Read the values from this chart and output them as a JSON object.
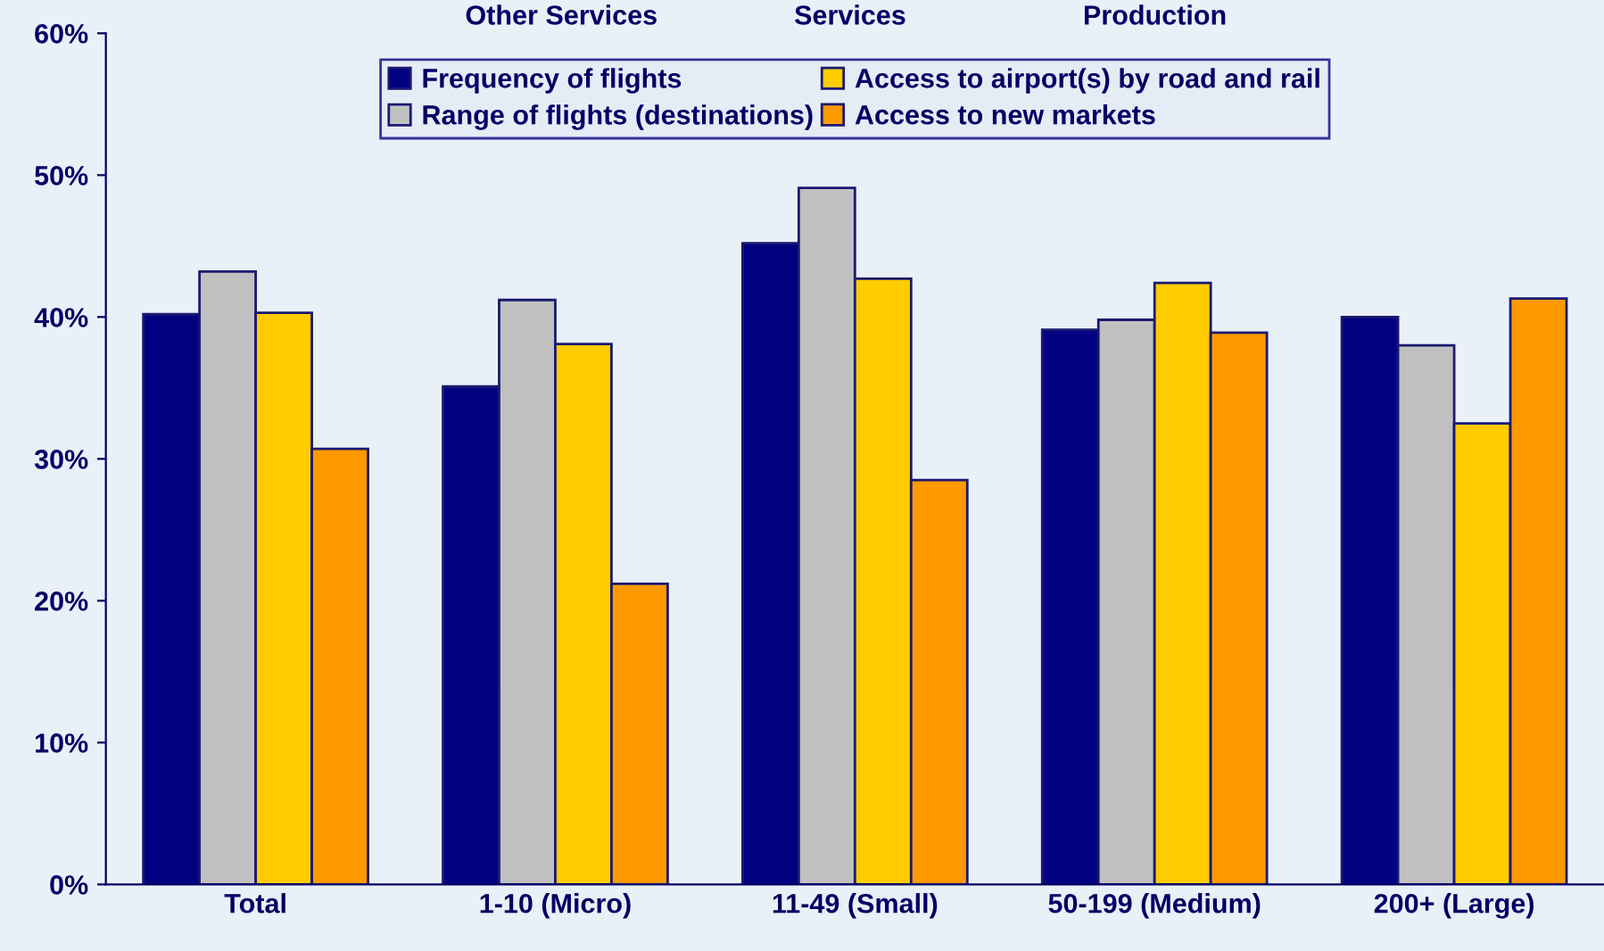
{
  "chart_data": {
    "type": "bar",
    "categories": [
      "Total",
      "1-10 (Micro)",
      "11-49 (Small)",
      "50-199 (Medium)",
      "200+ (Large)"
    ],
    "series": [
      {
        "name": "Frequency of flights",
        "color": "#000080",
        "values": [
          40.2,
          35.1,
          45.2,
          39.1,
          40.0
        ]
      },
      {
        "name": "Range of flights (destinations)",
        "color": "#c0c0c0",
        "values": [
          43.2,
          41.2,
          49.1,
          39.8,
          38.0
        ]
      },
      {
        "name": "Access to airport(s) by road and rail",
        "color": "#ffcc00",
        "values": [
          40.3,
          38.1,
          42.7,
          42.4,
          32.5
        ]
      },
      {
        "name": "Access to new markets",
        "color": "#ff9900",
        "values": [
          30.7,
          21.2,
          28.5,
          38.9,
          41.3
        ]
      }
    ],
    "ylim": [
      0,
      60
    ],
    "yticks": [
      {
        "value": 0,
        "label": "0%"
      },
      {
        "value": 10,
        "label": "10%"
      },
      {
        "value": 20,
        "label": "20%"
      },
      {
        "value": 30,
        "label": "30%"
      },
      {
        "value": 40,
        "label": "40%"
      },
      {
        "value": 50,
        "label": "50%"
      },
      {
        "value": 60,
        "label": "60%"
      }
    ],
    "annotations": [
      "Other Services",
      "Services",
      "Production"
    ],
    "legend": "top",
    "grid": false
  }
}
